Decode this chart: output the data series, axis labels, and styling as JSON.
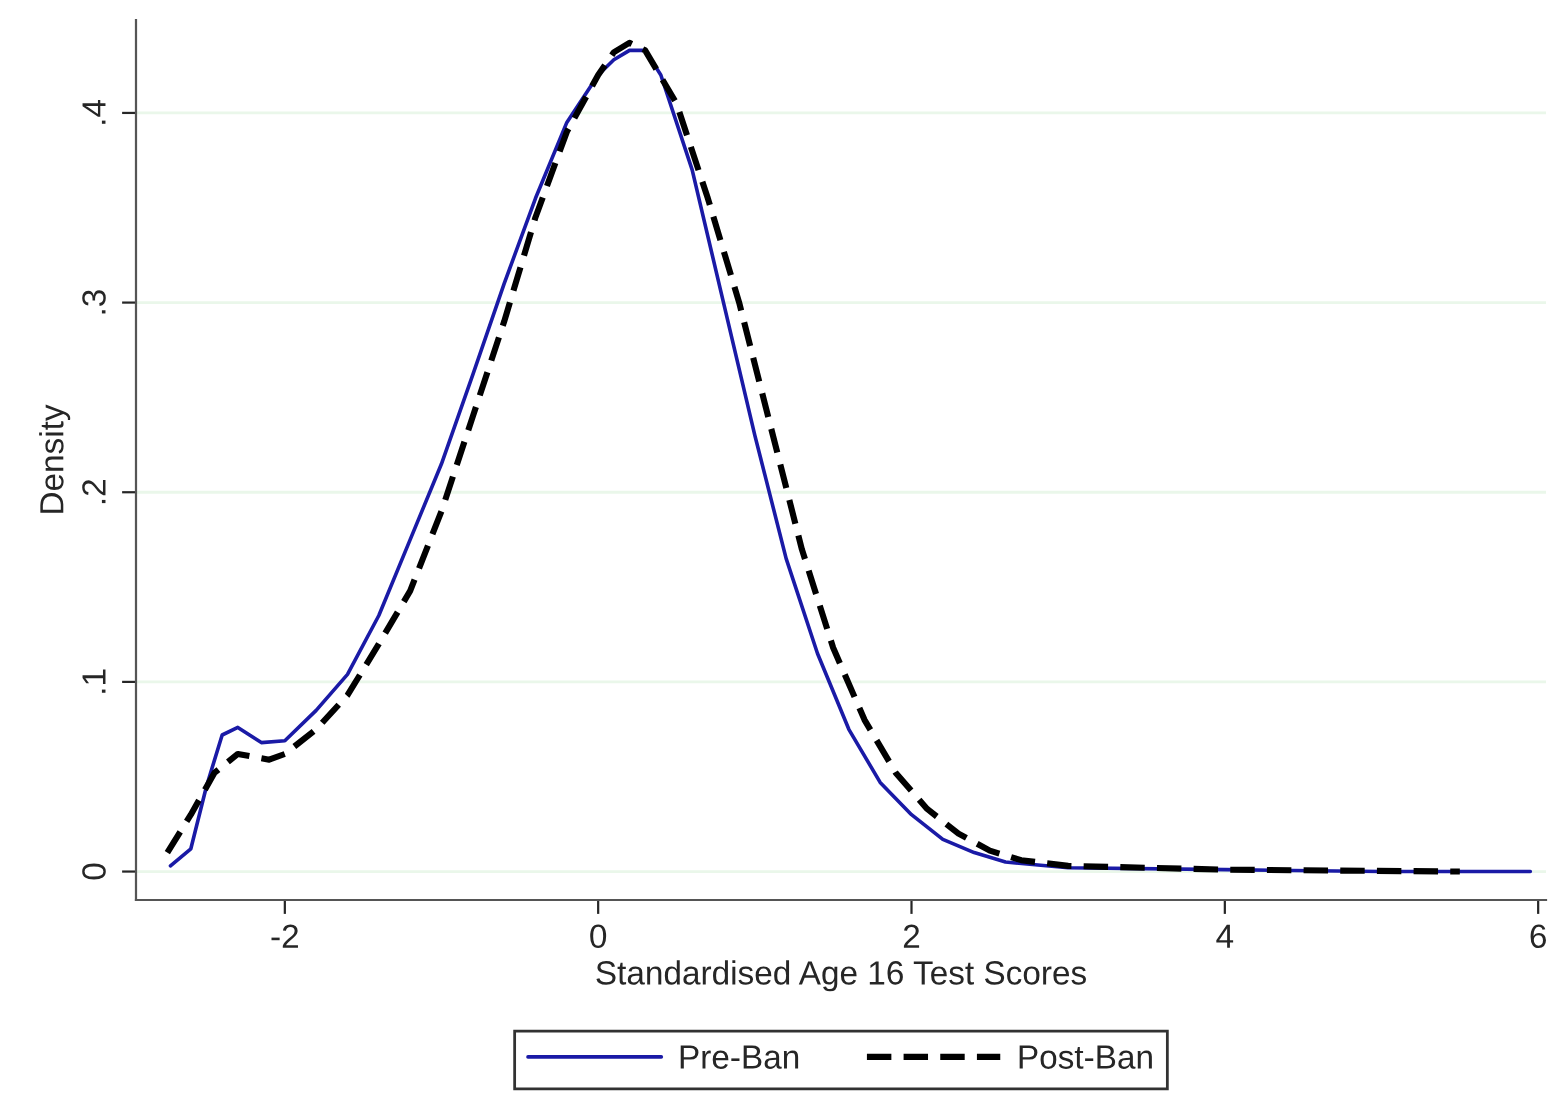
{
  "chart_data": {
    "type": "line",
    "xlabel": "Standardised Age 16 Test Scores",
    "ylabel": "Density",
    "xlim": [
      -2.95,
      6.05
    ],
    "ylim": [
      -0.015,
      0.449
    ],
    "xticks": [
      {
        "value": -2,
        "label": "-2"
      },
      0,
      2,
      4,
      6
    ],
    "yticks": [
      0,
      {
        "value": 0.1,
        "label": ".1"
      },
      {
        "value": 0.2,
        "label": ".2"
      },
      {
        "value": 0.3,
        "label": ".3"
      },
      {
        "value": 0.4,
        "label": ".4"
      }
    ],
    "grid": "y",
    "legend": "bottom",
    "series": [
      {
        "name": "Pre-Ban",
        "color": "#1a1aa6",
        "line_style": "solid",
        "x": [
          -2.73,
          -2.6,
          -2.5,
          -2.4,
          -2.3,
          -2.15,
          -2.0,
          -1.8,
          -1.6,
          -1.4,
          -1.2,
          -1.0,
          -0.8,
          -0.6,
          -0.4,
          -0.2,
          0,
          0.1,
          0.2,
          0.3,
          0.4,
          0.6,
          0.8,
          1.0,
          1.2,
          1.4,
          1.6,
          1.8,
          2.0,
          2.2,
          2.4,
          2.6,
          3.0,
          4,
          5,
          5.95
        ],
        "values": [
          0.003,
          0.012,
          0.045,
          0.072,
          0.076,
          0.068,
          0.069,
          0.085,
          0.104,
          0.135,
          0.175,
          0.215,
          0.262,
          0.31,
          0.355,
          0.395,
          0.42,
          0.428,
          0.433,
          0.433,
          0.42,
          0.37,
          0.3,
          0.23,
          0.165,
          0.115,
          0.075,
          0.047,
          0.03,
          0.017,
          0.01,
          0.005,
          0.002,
          0.001,
          0,
          0
        ]
      },
      {
        "name": "Post-Ban",
        "color": "#000000",
        "line_style": "dashed",
        "x": [
          -2.75,
          -2.6,
          -2.45,
          -2.3,
          -2.1,
          -2.0,
          -1.8,
          -1.6,
          -1.4,
          -1.2,
          -1.0,
          -0.8,
          -0.6,
          -0.4,
          -0.2,
          0,
          0.1,
          0.2,
          0.3,
          0.5,
          0.7,
          0.9,
          1.1,
          1.3,
          1.5,
          1.7,
          1.9,
          2.1,
          2.3,
          2.5,
          2.7,
          3.0,
          4,
          5.5
        ],
        "values": [
          0.01,
          0.03,
          0.052,
          0.062,
          0.059,
          0.062,
          0.075,
          0.093,
          0.12,
          0.148,
          0.19,
          0.24,
          0.29,
          0.345,
          0.39,
          0.42,
          0.432,
          0.437,
          0.433,
          0.405,
          0.355,
          0.3,
          0.235,
          0.17,
          0.118,
          0.08,
          0.052,
          0.033,
          0.02,
          0.011,
          0.006,
          0.003,
          0.001,
          0
        ]
      }
    ]
  }
}
